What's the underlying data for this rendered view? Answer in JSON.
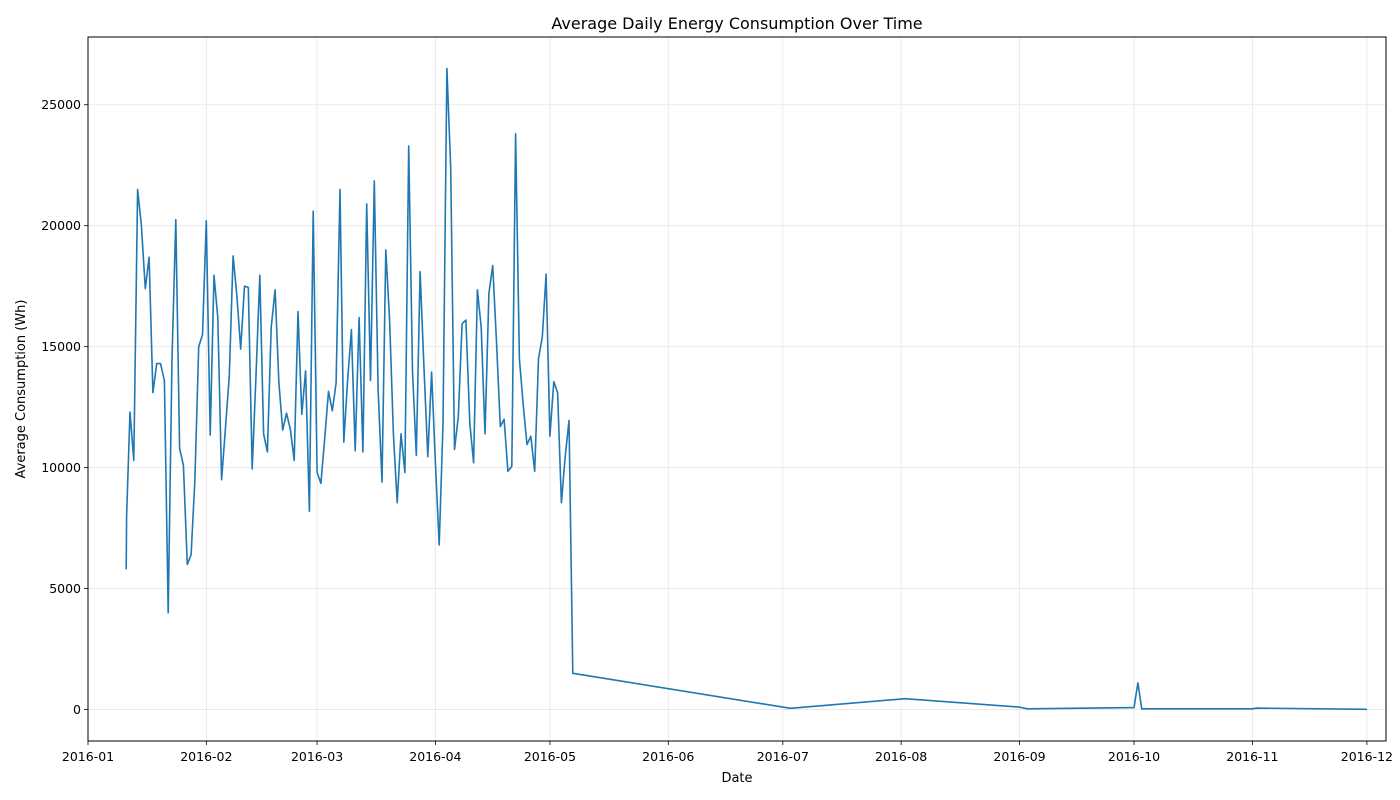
{
  "chart_data": {
    "type": "line",
    "title": "Average Daily Energy Consumption Over Time",
    "xlabel": "Date",
    "ylabel": "Average Consumption (Wh)",
    "grid": true,
    "line_color": "#1f77b4",
    "xlim": [
      "2016-01-01",
      "2016-12-06"
    ],
    "ylim": [
      -1300,
      27800
    ],
    "x_ticks": [
      "2016-01",
      "2016-02",
      "2016-03",
      "2016-04",
      "2016-05",
      "2016-06",
      "2016-07",
      "2016-08",
      "2016-09",
      "2016-10",
      "2016-11",
      "2016-12"
    ],
    "y_ticks": [
      0,
      5000,
      10000,
      15000,
      20000,
      25000
    ],
    "series": [
      {
        "x": [
          "2016-01-11",
          "2016-01-11",
          "2016-01-12",
          "2016-01-13",
          "2016-01-14",
          "2016-01-15",
          "2016-01-16",
          "2016-01-17",
          "2016-01-18",
          "2016-01-19",
          "2016-01-20",
          "2016-01-21",
          "2016-01-22",
          "2016-01-23",
          "2016-01-24",
          "2016-01-25",
          "2016-01-26",
          "2016-01-27",
          "2016-01-28",
          "2016-01-29",
          "2016-01-30",
          "2016-01-31",
          "2016-02-01",
          "2016-02-02",
          "2016-02-03",
          "2016-02-04",
          "2016-02-05",
          "2016-02-06",
          "2016-02-07",
          "2016-02-08",
          "2016-02-09",
          "2016-02-10",
          "2016-02-11",
          "2016-02-12",
          "2016-02-13",
          "2016-02-14",
          "2016-02-15",
          "2016-02-16",
          "2016-02-17",
          "2016-02-18",
          "2016-02-19",
          "2016-02-20",
          "2016-02-21",
          "2016-02-22",
          "2016-02-23",
          "2016-02-24",
          "2016-02-25",
          "2016-02-26",
          "2016-02-27",
          "2016-02-28",
          "2016-02-29",
          "2016-03-01",
          "2016-03-02",
          "2016-03-03",
          "2016-03-04",
          "2016-03-05",
          "2016-03-06",
          "2016-03-07",
          "2016-03-08",
          "2016-03-09",
          "2016-03-10",
          "2016-03-11",
          "2016-03-12",
          "2016-03-13",
          "2016-03-14",
          "2016-03-15",
          "2016-03-16",
          "2016-03-17",
          "2016-03-18",
          "2016-03-19",
          "2016-03-20",
          "2016-03-21",
          "2016-03-22",
          "2016-03-23",
          "2016-03-24",
          "2016-03-25",
          "2016-03-26",
          "2016-03-27",
          "2016-03-28",
          "2016-03-29",
          "2016-03-30",
          "2016-03-31",
          "2016-04-01",
          "2016-04-02",
          "2016-04-03",
          "2016-04-04",
          "2016-04-05",
          "2016-04-06",
          "2016-04-07",
          "2016-04-08",
          "2016-04-09",
          "2016-04-10",
          "2016-04-11",
          "2016-04-12",
          "2016-04-13",
          "2016-04-14",
          "2016-04-15",
          "2016-04-16",
          "2016-04-17",
          "2016-04-18",
          "2016-04-19",
          "2016-04-20",
          "2016-04-21",
          "2016-04-22",
          "2016-04-23",
          "2016-04-24",
          "2016-04-25",
          "2016-04-26",
          "2016-04-27",
          "2016-04-28",
          "2016-04-29",
          "2016-04-30",
          "2016-05-01",
          "2016-05-02",
          "2016-05-03",
          "2016-05-04",
          "2016-05-05",
          "2016-05-06",
          "2016-05-07",
          "2016-07-03",
          "2016-08-02",
          "2016-09-01",
          "2016-09-03",
          "2016-10-01",
          "2016-10-02",
          "2016-10-03",
          "2016-11-01",
          "2016-11-02",
          "2016-12-01"
        ],
        "y": [
          5800,
          8000,
          12300,
          10300,
          21500,
          20000,
          17400,
          18700,
          13100,
          14300,
          14300,
          13600,
          4000,
          14500,
          20250,
          10800,
          10100,
          6000,
          6400,
          9500,
          15000,
          15500,
          20200,
          11350,
          17950,
          16200,
          9500,
          11600,
          13800,
          18750,
          17100,
          14900,
          17500,
          17450,
          9950,
          13800,
          17950,
          11400,
          10650,
          15800,
          17350,
          13500,
          11550,
          12250,
          11600,
          10300,
          16450,
          12200,
          14000,
          8200,
          20600,
          9800,
          9350,
          11200,
          13150,
          12350,
          13500,
          21500,
          11050,
          13600,
          15700,
          10700,
          16200,
          10650,
          20900,
          13600,
          21850,
          13250,
          9400,
          19000,
          16100,
          11400,
          8550,
          11400,
          9800,
          23300,
          14000,
          10500,
          18100,
          14100,
          10450,
          13950,
          10200,
          6800,
          11800,
          26500,
          22400,
          10750,
          12100,
          15950,
          16100,
          11850,
          10200,
          17350,
          15800,
          11400,
          17200,
          18350,
          15200,
          11700,
          12000,
          9850,
          10050,
          23800,
          14500,
          12600,
          10950,
          11300,
          9850,
          14500,
          15400,
          18000,
          11300,
          13550,
          13100,
          8550,
          10450,
          11950,
          1500,
          50,
          450,
          100,
          30,
          80,
          1100,
          30,
          30,
          60,
          10
        ]
      }
    ]
  }
}
